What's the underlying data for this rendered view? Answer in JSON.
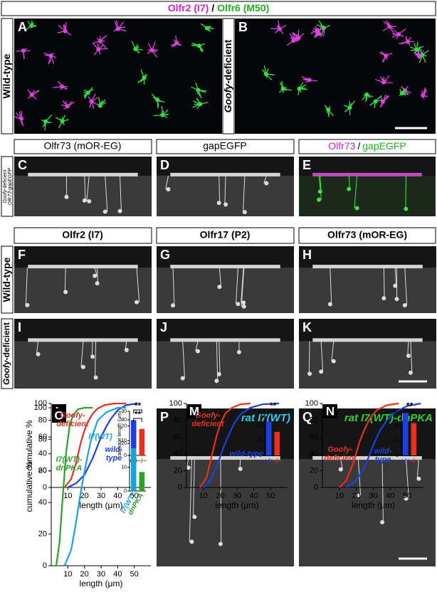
{
  "header": {
    "olfr2": "Olfr2 (I7)",
    "slash": "/",
    "olfr6": "Olfr6 (M50)"
  },
  "panel_letters": [
    "A",
    "B",
    "C",
    "D",
    "E",
    "F",
    "G",
    "H",
    "I",
    "J",
    "K",
    "L",
    "M",
    "N",
    "O",
    "P",
    "Q"
  ],
  "side_labels": {
    "wild_type": "Wild-type",
    "goofy": "Goofy",
    "deficient": "-deficient",
    "reporter": "Olfr73-gapEGFP"
  },
  "row2_headers": {
    "olfr73": "Olfr73 (mOR-EG)",
    "gapegfp": "gapEGFP",
    "merge_olfr73": "Olfr73",
    "merge_slash": "/",
    "merge_gapegfp": "gapEGFP"
  },
  "row3_headers": [
    "Olfr2 (I7)",
    "Olfr17 (P2)",
    "Olfr73 (mOR-EG)"
  ],
  "image_labels": {
    "p": "rat I7(WT)",
    "q": "rat I7(WT)-dnPKA"
  },
  "charts": [
    {
      "type": "line",
      "ylabel": "cumulative %",
      "xlabel": "length (μm)",
      "xlim": [
        0,
        60
      ],
      "ylim": [
        0,
        100
      ],
      "xticks": [
        10,
        20,
        30,
        40,
        50
      ],
      "yticks": [
        0,
        20,
        40,
        60,
        80,
        100
      ],
      "series": [
        {
          "name": "Goofy-deficient",
          "color": "#e8301e",
          "x": [
            8,
            12,
            15,
            18,
            20,
            22,
            25,
            28,
            32,
            38,
            45
          ],
          "values": [
            0,
            10,
            30,
            55,
            68,
            78,
            88,
            94,
            98,
            100,
            100
          ]
        },
        {
          "name": "wild-type",
          "color": "#1f3fdc",
          "x": [
            10,
            15,
            20,
            25,
            28,
            30,
            33,
            36,
            40,
            45,
            52
          ],
          "values": [
            0,
            5,
            15,
            35,
            50,
            60,
            72,
            82,
            92,
            98,
            100
          ]
        }
      ],
      "inset": {
        "type": "bar",
        "ylabel": "average length (μm)",
        "categories": [
          "+/+",
          "−/−"
        ],
        "values": [
          24,
          18
        ],
        "colors": [
          "#1f3fdc",
          "#e8301e"
        ],
        "ylim": [
          0,
          30
        ],
        "yticks": [
          0,
          10,
          20,
          30
        ],
        "significance": "**"
      }
    },
    {
      "type": "line",
      "xlabel": "length (μm)",
      "xlim": [
        0,
        60
      ],
      "ylim": [
        0,
        100
      ],
      "xticks": [
        10,
        20,
        30,
        40,
        50
      ],
      "yticks": [
        0,
        20,
        40,
        60,
        80,
        100
      ],
      "series": [
        {
          "name": "Goofy-deficient",
          "color": "#e8301e",
          "x": [
            8,
            12,
            15,
            18,
            20,
            23,
            27,
            32,
            38
          ],
          "values": [
            0,
            12,
            38,
            62,
            75,
            88,
            95,
            99,
            100
          ]
        },
        {
          "name": "wild-type",
          "color": "#1f3fdc",
          "x": [
            10,
            14,
            18,
            22,
            25,
            28,
            32,
            38,
            45,
            55
          ],
          "values": [
            0,
            8,
            25,
            48,
            62,
            75,
            87,
            95,
            99,
            100
          ]
        }
      ],
      "inset": {
        "type": "bar",
        "categories": [
          "+/+",
          "−/−"
        ],
        "values": [
          23,
          16
        ],
        "colors": [
          "#1f3fdc",
          "#e8301e"
        ],
        "ylim": [
          0,
          30
        ],
        "yticks": [
          0,
          10,
          20,
          30
        ],
        "significance": "**"
      }
    },
    {
      "type": "line",
      "xlabel": "length (μm)",
      "xlim": [
        0,
        60
      ],
      "ylim": [
        0,
        100
      ],
      "xticks": [
        10,
        20,
        30,
        40,
        50
      ],
      "yticks": [
        0,
        20,
        40,
        60,
        80,
        100
      ],
      "series": [
        {
          "name": "Goofy-deficient",
          "color": "#e8301e",
          "x": [
            10,
            14,
            18,
            22,
            25,
            28,
            32,
            38,
            45
          ],
          "values": [
            0,
            8,
            28,
            55,
            70,
            82,
            92,
            98,
            100
          ]
        },
        {
          "name": "wild-type",
          "color": "#1f3fdc",
          "x": [
            14,
            20,
            25,
            28,
            31,
            34,
            38,
            43,
            50,
            58
          ],
          "values": [
            0,
            8,
            25,
            40,
            55,
            68,
            80,
            90,
            97,
            100
          ]
        }
      ],
      "inset": {
        "type": "bar",
        "categories": [
          "+/+",
          "−/−"
        ],
        "values": [
          29,
          22
        ],
        "colors": [
          "#1f3fdc",
          "#e8301e"
        ],
        "ylim": [
          0,
          30
        ],
        "yticks": [
          0,
          10,
          20,
          30
        ],
        "significance": "**"
      }
    },
    {
      "type": "line",
      "ylabel": "cumulative %",
      "xlabel": "length (μm)",
      "xlim": [
        0,
        60
      ],
      "ylim": [
        0,
        100
      ],
      "xticks": [
        10,
        20,
        30,
        40,
        50
      ],
      "yticks": [
        0,
        20,
        40,
        60,
        80,
        100
      ],
      "series": [
        {
          "name": "I7(WT)-dnPKA",
          "color": "#2ca02c",
          "x": [
            3,
            5,
            7,
            9,
            11,
            13,
            16,
            20,
            25
          ],
          "values": [
            0,
            15,
            45,
            72,
            88,
            95,
            99,
            100,
            100
          ]
        },
        {
          "name": "I7(WT)",
          "color": "#1aa3d9",
          "x": [
            8,
            12,
            15,
            18,
            21,
            24,
            28,
            33,
            40,
            45
          ],
          "values": [
            0,
            10,
            28,
            48,
            65,
            80,
            92,
            97,
            100,
            100
          ]
        }
      ],
      "inset": {
        "type": "bar",
        "categories": [
          "I7(WT)",
          "dnPKA"
        ],
        "values": [
          18,
          8
        ],
        "colors": [
          "#1aa3d9",
          "#2ca02c"
        ],
        "ylim": [
          0,
          30
        ],
        "yticks": [
          0,
          10,
          20,
          30
        ],
        "significance": "**"
      }
    }
  ]
}
